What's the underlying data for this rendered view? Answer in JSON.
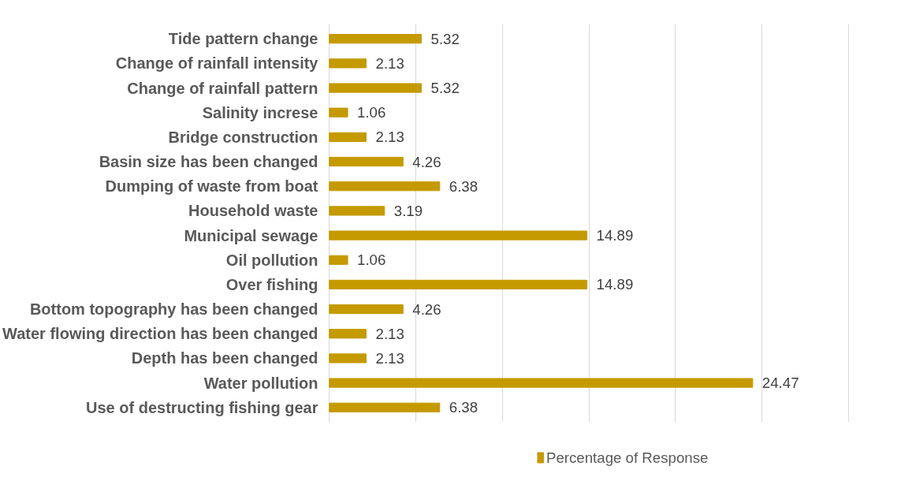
{
  "chart_data": {
    "type": "bar",
    "orientation": "horizontal",
    "categories": [
      "Tide pattern change",
      "Change of rainfall intensity",
      "Change of rainfall pattern",
      "Salinity increse",
      "Bridge construction",
      "Basin size has been changed",
      "Dumping of waste from boat",
      "Household waste",
      "Municipal sewage",
      "Oil pollution",
      "Over fishing",
      "Bottom topography has been changed",
      "Water flowing direction has been changed",
      "Depth has been changed",
      "Water pollution",
      "Use of destructing fishing gear"
    ],
    "series": [
      {
        "name": "Percentage of Response",
        "color": "#c49a00",
        "values": [
          5.32,
          2.13,
          5.32,
          1.06,
          2.13,
          4.26,
          6.38,
          3.19,
          14.89,
          1.06,
          14.89,
          4.26,
          2.13,
          2.13,
          24.47,
          6.38
        ]
      }
    ],
    "xticks": [
      {
        "value": 0,
        "label": null
      },
      {
        "value": 5,
        "label": null
      },
      {
        "value": 10,
        "label": null
      },
      {
        "value": 15,
        "label": null
      },
      {
        "value": 20,
        "label": null
      },
      {
        "value": 25,
        "label": null
      },
      {
        "value": 30,
        "label": null
      }
    ],
    "tick_labels": "y",
    "grid": "x",
    "legend": "bottom",
    "data_labels": true
  }
}
